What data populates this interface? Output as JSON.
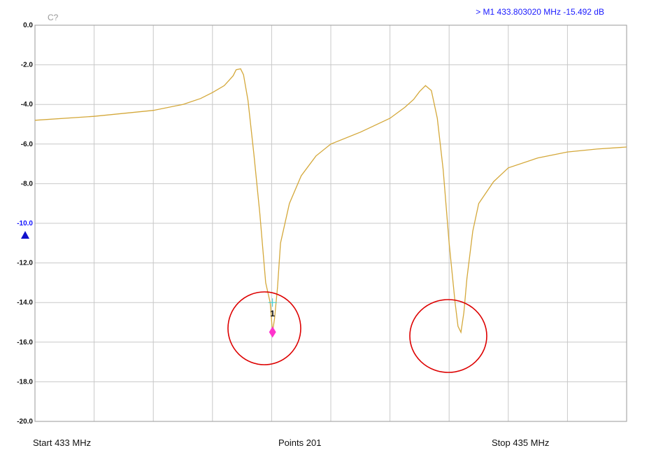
{
  "header": {
    "channel_label": "C?",
    "marker_readout": "> M1  433.803020 MHz   -15.492 dB"
  },
  "footer": {
    "start_label": "Start  433 MHz",
    "points_label": "Points  201",
    "stop_label": "Stop  435 MHz"
  },
  "colors": {
    "trace": "#d4a83a",
    "grid": "#c8c8c8",
    "marker": "#ff33cc",
    "marker_cross": "#33cccc",
    "reference": "#1010cc",
    "annotation_circle": "#dd0000",
    "header_text": "#1a1aff",
    "channel_text": "#999999"
  },
  "chart_data": {
    "type": "line",
    "xlim": [
      433,
      435
    ],
    "ylim": [
      -20,
      0
    ],
    "yticks": [
      {
        "value": 0,
        "label": "0.0"
      },
      {
        "value": -2,
        "label": "-2.0"
      },
      {
        "value": -4,
        "label": "-4.0"
      },
      {
        "value": -6,
        "label": "-6.0"
      },
      {
        "value": -8,
        "label": "-8.0"
      },
      {
        "value": -10,
        "label": "-10.0",
        "reference": true
      },
      {
        "value": -12,
        "label": "-12.0"
      },
      {
        "value": -14,
        "label": "-14.0"
      },
      {
        "value": -16,
        "label": "-16.0"
      },
      {
        "value": -18,
        "label": "-18.0"
      },
      {
        "value": -20,
        "label": "-20.0"
      }
    ],
    "x_divisions": 10,
    "grid": true,
    "series": [
      {
        "x": [
          433.0,
          433.2,
          433.4,
          433.5,
          433.56,
          433.6,
          433.64,
          433.67,
          433.68,
          433.695,
          433.705,
          433.72,
          433.74,
          433.76,
          433.78,
          433.795,
          433.803,
          433.81,
          433.82,
          433.83,
          433.86,
          433.9,
          433.95,
          434.0,
          434.1,
          434.2,
          434.25,
          434.28,
          434.3,
          434.32,
          434.34,
          434.36,
          434.38,
          434.4,
          434.42,
          434.43,
          434.44,
          434.45,
          434.46,
          434.48,
          434.5,
          434.55,
          434.6,
          434.7,
          434.8,
          434.9,
          435.0
        ],
        "y": [
          -4.8,
          -4.6,
          -4.3,
          -4.0,
          -3.7,
          -3.4,
          -3.05,
          -2.55,
          -2.25,
          -2.2,
          -2.5,
          -3.8,
          -6.5,
          -9.5,
          -13.0,
          -14.0,
          -15.5,
          -14.8,
          -13.2,
          -11.0,
          -9.0,
          -7.6,
          -6.6,
          -6.0,
          -5.4,
          -4.7,
          -4.15,
          -3.75,
          -3.35,
          -3.05,
          -3.3,
          -4.7,
          -7.3,
          -11.0,
          -14.0,
          -15.2,
          -15.5,
          -14.5,
          -12.8,
          -10.4,
          -9.0,
          -7.9,
          -7.2,
          -6.7,
          -6.4,
          -6.25,
          -6.15
        ]
      }
    ],
    "marker": {
      "id": "1",
      "x": 433.80302,
      "y": -15.492
    },
    "reference_level": -10.0
  }
}
